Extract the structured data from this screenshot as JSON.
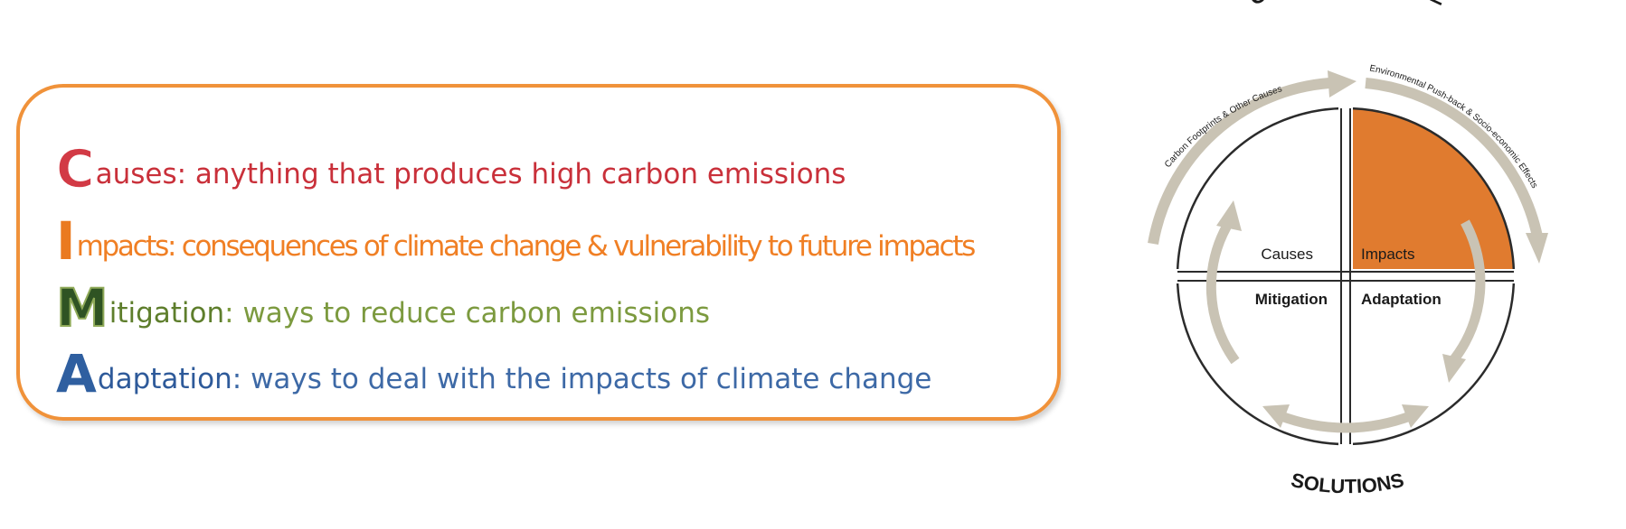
{
  "cima": {
    "causes": {
      "letter": "C",
      "term": "auses:",
      "text": " anything that produces high carbon emissions"
    },
    "impacts": {
      "letter": "I",
      "term": "mpacts:",
      "text": " consequences of climate change & vulnerability to future impacts"
    },
    "mitigation": {
      "letter": "M",
      "term": "itigation",
      "text": ": ways to reduce carbon emissions"
    },
    "adaptation": {
      "letter": "A",
      "term": "daptation",
      "text": ": ways to deal with the impacts of climate change"
    }
  },
  "diagram": {
    "top_label": "CLIMATE CHANGE",
    "bottom_label": "SOLUTIONS",
    "left_arc_label": "Carbon Footprints & Other Causes",
    "right_arc_label": "Environmental Push-back & Socio-economic Effects",
    "quadrants": {
      "causes": "Causes",
      "impacts": "Impacts",
      "mitigation": "Mitigation",
      "adaptation": "Adaptation"
    },
    "colors": {
      "impacts_fill": "#e07b2f",
      "arrow": "#c9c3b4",
      "line": "#2b2b2b"
    }
  }
}
